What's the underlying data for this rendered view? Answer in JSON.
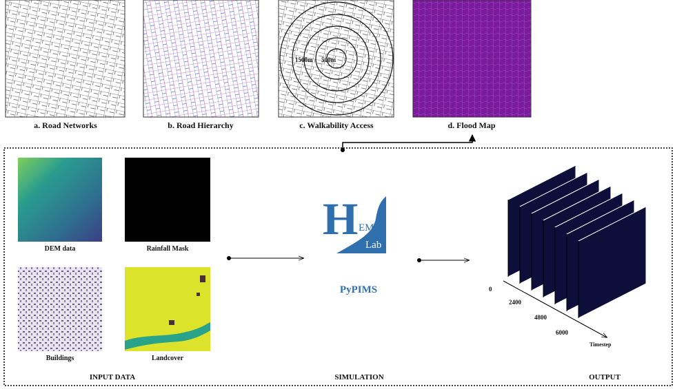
{
  "top_maps": [
    "a. Road Networks",
    "b. Road Hierarchy",
    "c. Walkability Access",
    "d. Flood Map"
  ],
  "walkability_rings": [
    "1500m",
    "500m"
  ],
  "inputs": [
    "DEM data",
    "Rainfall Mask",
    "Buildings",
    "Landcover"
  ],
  "logo": {
    "letter": "H",
    "top": "EM",
    "bottom": "Lab"
  },
  "simulation": "PyPIMS",
  "output": {
    "ticks": [
      "0",
      "2400",
      "4800",
      "6000"
    ],
    "axis_label": "Timestep"
  },
  "sections": [
    "INPUT DATA",
    "SIMULATION",
    "OUTPUT"
  ]
}
